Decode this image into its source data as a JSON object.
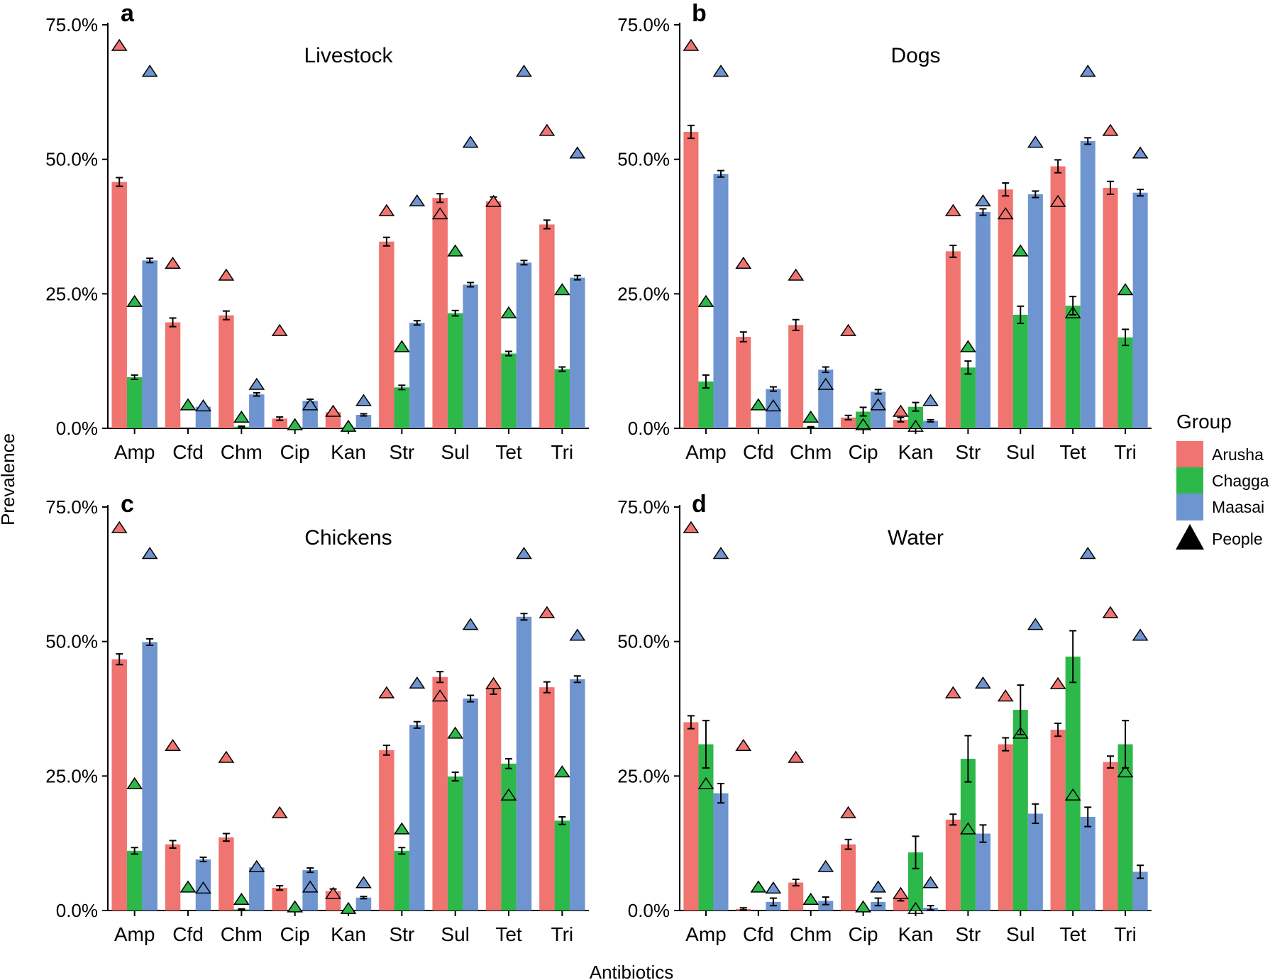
{
  "axis_titles": {
    "x": "Antibiotics",
    "y": "Prevalence"
  },
  "legend": {
    "title": "Group",
    "items": [
      {
        "key": "arusha",
        "label": "Arusha",
        "color": "#F07470"
      },
      {
        "key": "chagga",
        "label": "Chagga",
        "color": "#2DB84A"
      },
      {
        "key": "maasai",
        "label": "Maasai",
        "color": "#6E95D0"
      }
    ],
    "people_label": "People"
  },
  "chart_data": [
    {
      "type": "bar",
      "panel": "a",
      "title": "Livestock",
      "xlabel": "Antibiotics",
      "ylabel": "Prevalence",
      "ylim": [
        0,
        75
      ],
      "yticks": [
        "0.0%",
        "25.0%",
        "50.0%",
        "75.0%"
      ],
      "categories": [
        "Amp",
        "Cfd",
        "Chm",
        "Cip",
        "Kan",
        "Str",
        "Sul",
        "Tet",
        "Tri"
      ],
      "series": [
        {
          "name": "Arusha",
          "values": [
            45.8,
            19.7,
            21.0,
            1.8,
            3.0,
            34.7,
            42.8,
            42.2,
            37.9
          ],
          "errors": [
            0.8,
            0.8,
            0.8,
            0.3,
            0.4,
            0.8,
            0.8,
            0.8,
            0.8
          ]
        },
        {
          "name": "Chagga",
          "values": [
            9.5,
            0.0,
            0.3,
            0.0,
            0.0,
            7.6,
            21.4,
            13.9,
            11.0
          ],
          "errors": [
            0.4,
            0.0,
            0.1,
            0.0,
            0.0,
            0.4,
            0.5,
            0.4,
            0.4
          ]
        },
        {
          "name": "Maasai",
          "values": [
            31.2,
            4.0,
            6.3,
            5.1,
            2.5,
            19.6,
            26.7,
            30.8,
            28.0
          ],
          "errors": [
            0.4,
            0.2,
            0.3,
            0.3,
            0.2,
            0.4,
            0.4,
            0.4,
            0.4
          ]
        }
      ],
      "people": [
        {
          "name": "Arusha",
          "values": [
            71.0,
            30.5,
            28.3,
            18.0,
            3.0,
            40.3,
            39.7,
            42.0,
            55.2
          ]
        },
        {
          "name": "Chagga",
          "values": [
            23.4,
            4.2,
            1.9,
            0.5,
            0.2,
            15.0,
            32.8,
            21.3,
            25.6
          ]
        },
        {
          "name": "Maasai",
          "values": [
            66.2,
            4.0,
            8.0,
            4.2,
            5.0,
            42.1,
            53.0,
            66.2,
            51.0
          ]
        }
      ]
    },
    {
      "type": "bar",
      "panel": "b",
      "title": "Dogs",
      "xlabel": "Antibiotics",
      "ylabel": "Prevalence",
      "ylim": [
        0,
        75
      ],
      "yticks": [
        "0.0%",
        "25.0%",
        "50.0%",
        "75.0%"
      ],
      "categories": [
        "Amp",
        "Cfd",
        "Chm",
        "Cip",
        "Kan",
        "Str",
        "Sul",
        "Tet",
        "Tri"
      ],
      "series": [
        {
          "name": "Arusha",
          "values": [
            55.1,
            17.0,
            19.2,
            2.0,
            1.6,
            32.9,
            44.4,
            48.7,
            44.7
          ],
          "errors": [
            1.2,
            0.9,
            1.0,
            0.4,
            0.4,
            1.1,
            1.2,
            1.2,
            1.2
          ]
        },
        {
          "name": "Chagga",
          "values": [
            8.7,
            0.0,
            0.2,
            3.1,
            4.0,
            11.3,
            21.1,
            22.8,
            16.9
          ],
          "errors": [
            1.2,
            0.0,
            0.1,
            0.8,
            0.8,
            1.2,
            1.6,
            1.7,
            1.5
          ]
        },
        {
          "name": "Maasai",
          "values": [
            47.3,
            7.3,
            10.9,
            6.8,
            1.4,
            40.2,
            43.5,
            53.4,
            43.8
          ],
          "errors": [
            0.6,
            0.4,
            0.5,
            0.4,
            0.2,
            0.6,
            0.6,
            0.6,
            0.6
          ]
        }
      ],
      "people": [
        {
          "name": "Arusha",
          "values": [
            71.0,
            30.5,
            28.3,
            18.0,
            3.0,
            40.3,
            39.7,
            42.0,
            55.2
          ]
        },
        {
          "name": "Chagga",
          "values": [
            23.4,
            4.2,
            1.9,
            0.5,
            0.2,
            15.0,
            32.8,
            21.3,
            25.6
          ]
        },
        {
          "name": "Maasai",
          "values": [
            66.2,
            4.0,
            8.0,
            4.2,
            5.0,
            42.1,
            53.0,
            66.2,
            51.0
          ]
        }
      ]
    },
    {
      "type": "bar",
      "panel": "c",
      "title": "Chickens",
      "xlabel": "Antibiotics",
      "ylabel": "Prevalence",
      "ylim": [
        0,
        75
      ],
      "yticks": [
        "0.0%",
        "25.0%",
        "50.0%",
        "75.0%"
      ],
      "categories": [
        "Amp",
        "Cfd",
        "Chm",
        "Cip",
        "Kan",
        "Str",
        "Sul",
        "Tet",
        "Tri"
      ],
      "series": [
        {
          "name": "Arusha",
          "values": [
            46.7,
            12.3,
            13.6,
            4.2,
            3.6,
            29.8,
            43.4,
            41.2,
            41.5
          ],
          "errors": [
            1.0,
            0.7,
            0.7,
            0.4,
            0.4,
            0.9,
            1.0,
            1.0,
            1.0
          ]
        },
        {
          "name": "Chagga",
          "values": [
            11.1,
            0.0,
            0.2,
            0.0,
            0.0,
            11.1,
            24.9,
            27.3,
            16.7
          ],
          "errors": [
            0.6,
            0.0,
            0.1,
            0.0,
            0.0,
            0.6,
            0.8,
            0.9,
            0.7
          ]
        },
        {
          "name": "Maasai",
          "values": [
            49.9,
            9.5,
            8.0,
            7.5,
            2.4,
            34.5,
            39.4,
            54.6,
            43.0
          ],
          "errors": [
            0.6,
            0.4,
            0.4,
            0.4,
            0.2,
            0.6,
            0.6,
            0.6,
            0.6
          ]
        }
      ],
      "people": [
        {
          "name": "Arusha",
          "values": [
            71.0,
            30.5,
            28.3,
            18.0,
            3.0,
            40.3,
            39.7,
            42.0,
            55.2
          ]
        },
        {
          "name": "Chagga",
          "values": [
            23.4,
            4.2,
            1.9,
            0.5,
            0.2,
            15.0,
            32.8,
            21.3,
            25.6
          ]
        },
        {
          "name": "Maasai",
          "values": [
            66.2,
            4.0,
            8.0,
            4.2,
            5.0,
            42.1,
            53.0,
            66.2,
            51.0
          ]
        }
      ]
    },
    {
      "type": "bar",
      "panel": "d",
      "title": "Water",
      "xlabel": "Antibiotics",
      "ylabel": "Prevalence",
      "ylim": [
        0,
        75
      ],
      "yticks": [
        "0.0%",
        "25.0%",
        "50.0%",
        "75.0%"
      ],
      "categories": [
        "Amp",
        "Cfd",
        "Chm",
        "Cip",
        "Kan",
        "Str",
        "Sul",
        "Tet",
        "Tri"
      ],
      "series": [
        {
          "name": "Arusha",
          "values": [
            35.0,
            0.3,
            5.2,
            12.3,
            2.3,
            16.9,
            30.9,
            33.6,
            27.6
          ],
          "errors": [
            1.2,
            0.2,
            0.6,
            0.9,
            0.5,
            1.0,
            1.2,
            1.2,
            1.1
          ]
        },
        {
          "name": "Chagga",
          "values": [
            30.9,
            0.0,
            0.0,
            0.0,
            10.8,
            28.2,
            37.3,
            47.2,
            30.9
          ],
          "errors": [
            4.4,
            0.0,
            0.0,
            0.0,
            3.0,
            4.3,
            4.6,
            4.8,
            4.4
          ]
        },
        {
          "name": "Maasai",
          "values": [
            21.8,
            1.6,
            1.8,
            1.6,
            0.5,
            14.3,
            18.0,
            17.4,
            7.2
          ],
          "errors": [
            1.8,
            0.7,
            0.7,
            0.7,
            0.4,
            1.6,
            1.8,
            1.8,
            1.2
          ]
        }
      ],
      "people": [
        {
          "name": "Arusha",
          "values": [
            71.0,
            30.5,
            28.3,
            18.0,
            3.0,
            40.3,
            39.7,
            42.0,
            55.2
          ]
        },
        {
          "name": "Chagga",
          "values": [
            23.4,
            4.2,
            1.9,
            0.5,
            0.2,
            15.0,
            32.8,
            21.3,
            25.6
          ]
        },
        {
          "name": "Maasai",
          "values": [
            66.2,
            4.0,
            8.0,
            4.2,
            5.0,
            42.1,
            53.0,
            66.2,
            51.0
          ]
        }
      ]
    }
  ]
}
